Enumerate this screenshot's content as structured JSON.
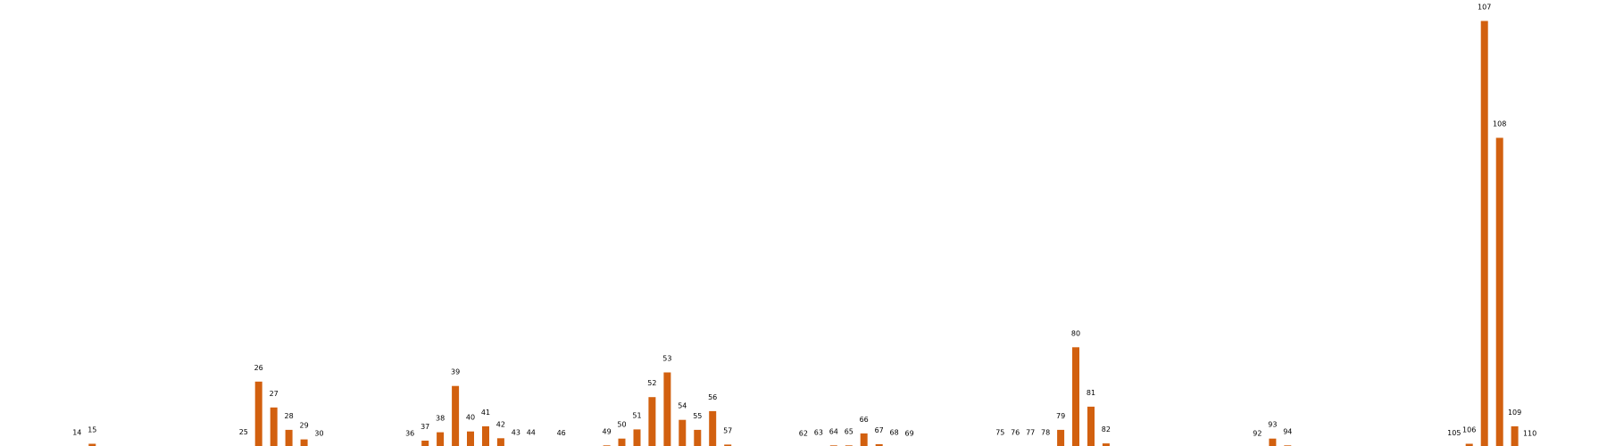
{
  "colors": {
    "bar": "#d2600f",
    "background": "#ffffff",
    "label": "#000000"
  },
  "chart_data": {
    "type": "bar",
    "title": "",
    "xlabel": "",
    "ylabel": "",
    "axes_visible": false,
    "grid": false,
    "ylim": [
      0,
      107
    ],
    "categories": [
      14,
      15,
      25,
      26,
      27,
      28,
      29,
      30,
      36,
      37,
      38,
      39,
      40,
      41,
      42,
      43,
      44,
      46,
      49,
      50,
      51,
      52,
      53,
      54,
      55,
      56,
      57,
      62,
      63,
      64,
      65,
      66,
      67,
      68,
      69,
      75,
      76,
      77,
      78,
      79,
      80,
      81,
      82,
      92,
      93,
      94,
      105,
      106,
      107,
      108,
      109,
      110
    ],
    "values": [
      0.3,
      1.0,
      0.4,
      16.6,
      10.1,
      4.5,
      2.1,
      0.1,
      0.1,
      1.8,
      3.9,
      15.5,
      4.1,
      5.4,
      2.4,
      0.3,
      0.3,
      0.2,
      0.6,
      2.3,
      4.6,
      12.7,
      18.9,
      7.0,
      4.5,
      9.2,
      0.8,
      0.1,
      0.3,
      0.6,
      0.6,
      3.6,
      0.9,
      0.3,
      0.1,
      0.3,
      0.3,
      0.3,
      0.3,
      4.5,
      25.2,
      10.3,
      1.1,
      0.1,
      2.3,
      0.6,
      0.2,
      1.0,
      107.0,
      77.7,
      5.4,
      0.1
    ]
  }
}
